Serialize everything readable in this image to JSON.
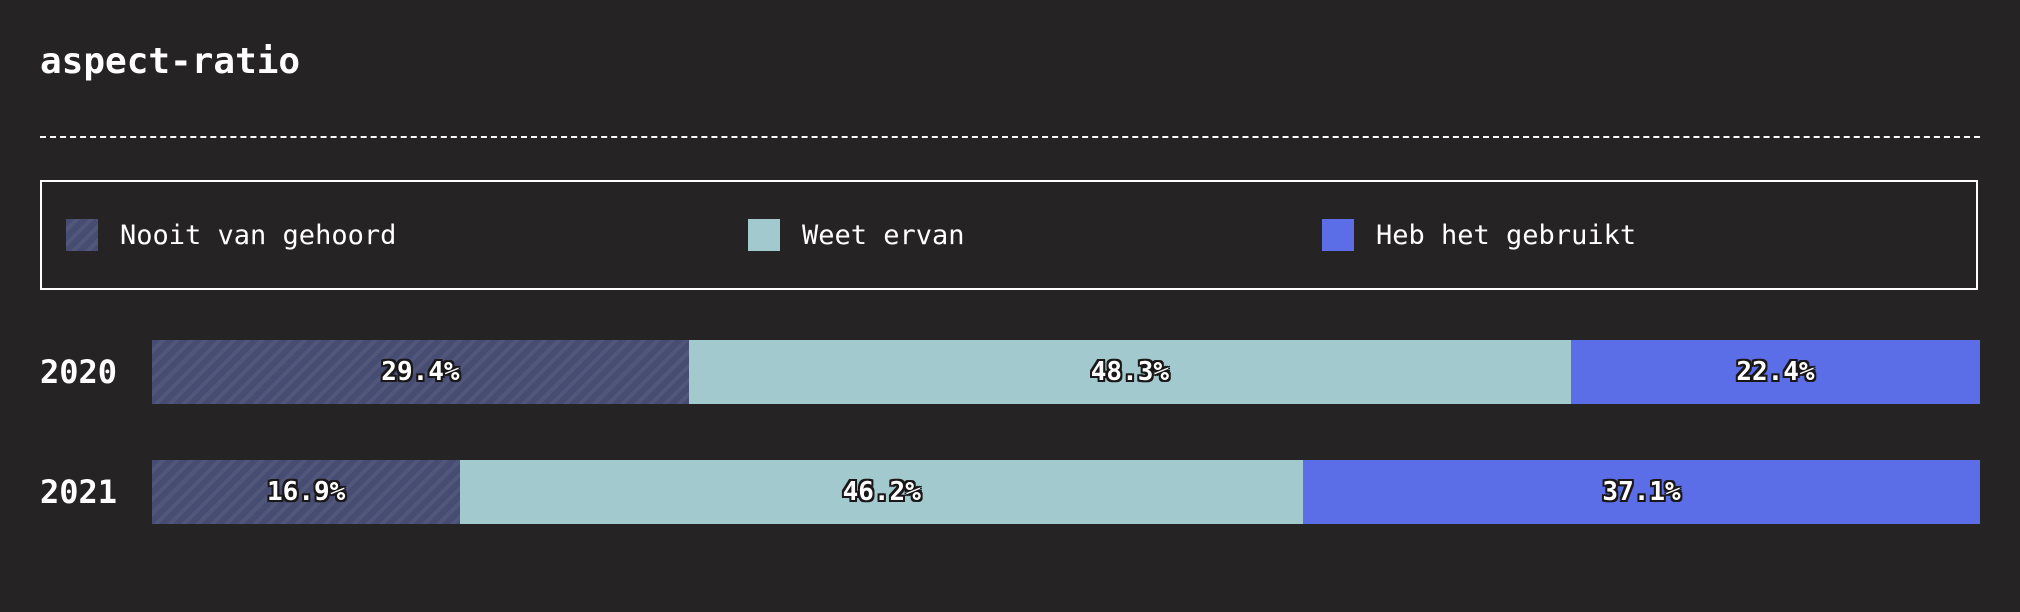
{
  "chart_data": {
    "type": "bar",
    "orientation": "horizontal-stacked-percent",
    "title": "aspect-ratio",
    "categories": [
      "2020",
      "2021"
    ],
    "series": [
      {
        "name": "Nooit van gehoord",
        "values": [
          29.4,
          16.9
        ],
        "labels": [
          "29.4%",
          "16.9%"
        ],
        "color": "#464c72",
        "pattern": "diagonal-stripes"
      },
      {
        "name": "Weet ervan",
        "values": [
          48.3,
          46.2
        ],
        "labels": [
          "48.3%",
          "46.2%"
        ],
        "color": "#a2c9cd"
      },
      {
        "name": "Heb het gebruikt",
        "values": [
          22.4,
          37.1
        ],
        "labels": [
          "22.4%",
          "37.1%"
        ],
        "color": "#5b6ee8"
      }
    ],
    "legend_position": "top",
    "grid": false
  }
}
